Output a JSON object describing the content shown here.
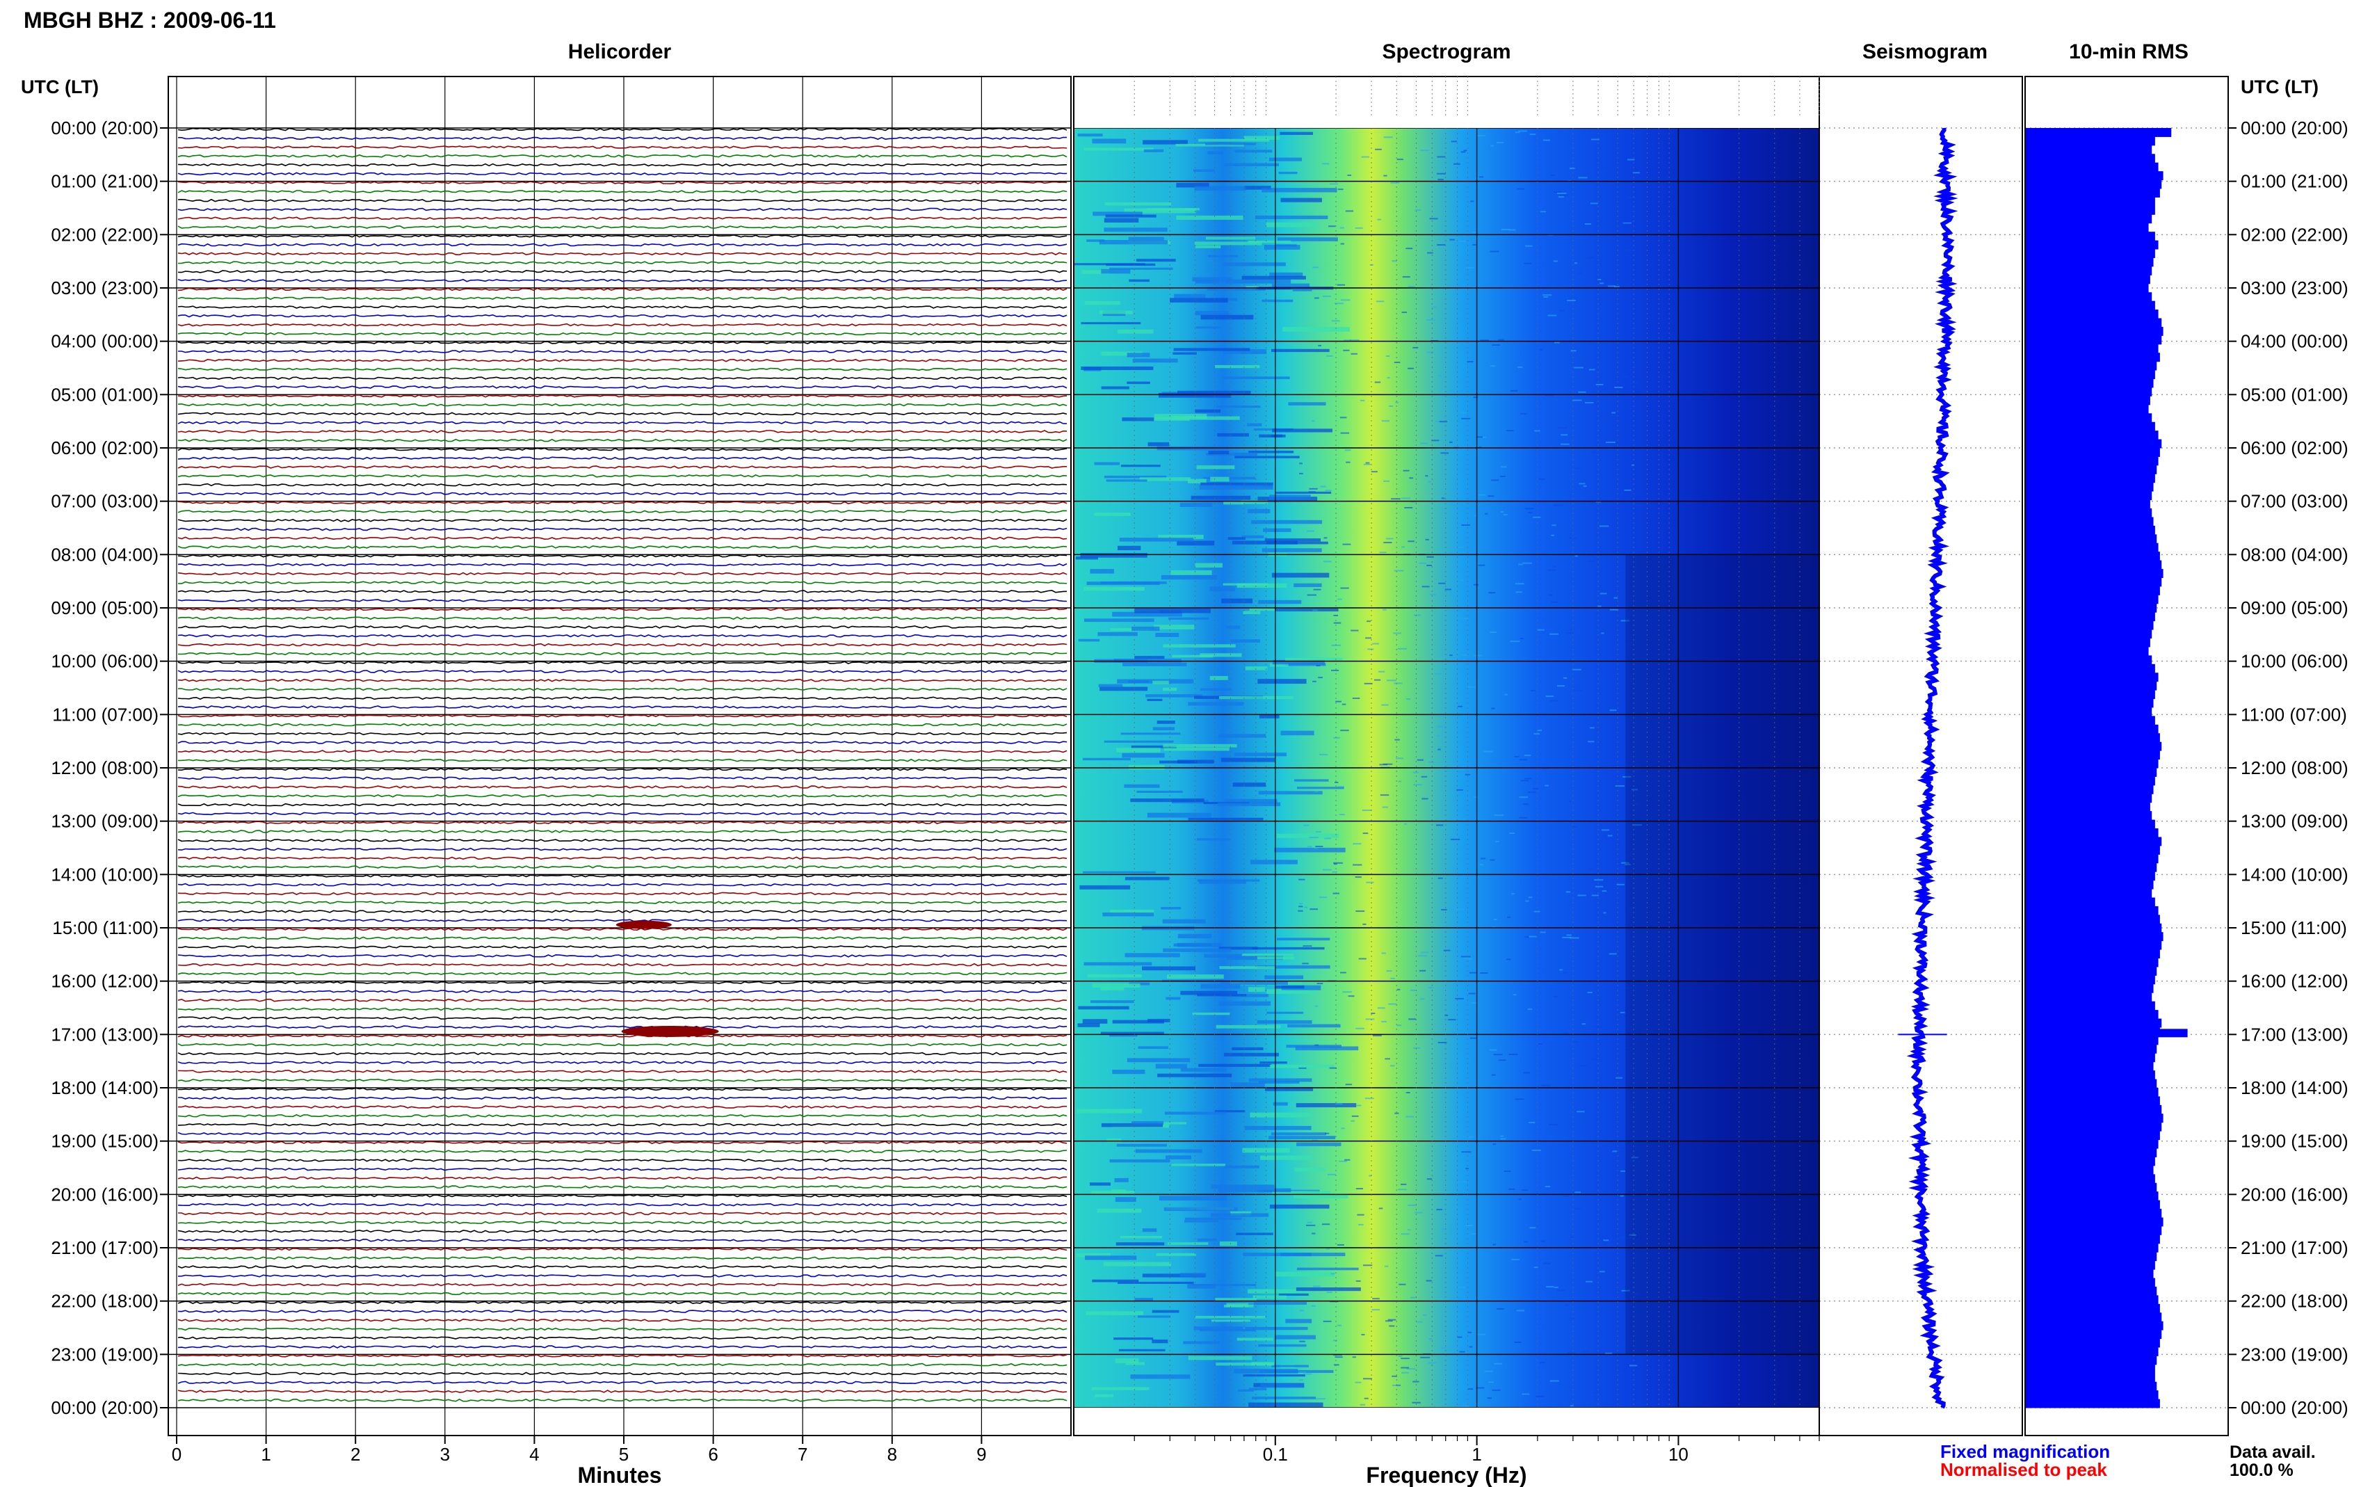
{
  "header": {
    "title": "MBGH BHZ : 2009-06-11"
  },
  "panels": {
    "helicorder": "Helicorder",
    "spectrogram": "Spectrogram",
    "seismogram": "Seismogram",
    "rms": "10-min RMS"
  },
  "axes": {
    "time_header_left": "UTC (LT)",
    "time_header_right": "UTC (LT)",
    "minutes_label": "Minutes",
    "frequency_label": "Frequency (Hz)"
  },
  "legend": {
    "fixed": "Fixed magnification",
    "normalised": "Normalised to peak",
    "fixed_color": "#0000ff",
    "normalised_color": "#ff0000"
  },
  "availability": {
    "label": "Data avail.",
    "value": "100.0 %"
  },
  "chart_data": {
    "type": "heatmap",
    "time_labels": [
      "00:00 (20:00)",
      "01:00 (21:00)",
      "02:00 (22:00)",
      "03:00 (23:00)",
      "04:00 (00:00)",
      "05:00 (01:00)",
      "06:00 (02:00)",
      "07:00 (03:00)",
      "08:00 (04:00)",
      "09:00 (05:00)",
      "10:00 (06:00)",
      "11:00 (07:00)",
      "12:00 (08:00)",
      "13:00 (09:00)",
      "14:00 (10:00)",
      "15:00 (11:00)",
      "16:00 (12:00)",
      "17:00 (13:00)",
      "18:00 (14:00)",
      "19:00 (15:00)",
      "20:00 (16:00)",
      "21:00 (17:00)",
      "22:00 (18:00)",
      "23:00 (19:00)",
      "00:00 (20:00)"
    ],
    "helicorder": {
      "x_ticks": [
        "0",
        "1",
        "2",
        "3",
        "4",
        "5",
        "6",
        "7",
        "8",
        "9"
      ],
      "xlim": [
        0,
        10
      ],
      "rows_per_hour": 6,
      "trace_colors": [
        "#000000",
        "#0000c8",
        "#a00000",
        "#008000"
      ],
      "events": [
        {
          "hour": 15,
          "minute": 5.1,
          "amplitude": 0.5
        },
        {
          "hour": 17,
          "minute": 5.3,
          "amplitude": 1.0
        }
      ]
    },
    "spectrogram": {
      "x_scale": "log",
      "xlim": [
        0.01,
        50
      ],
      "x_ticks": [
        "0.1",
        "1",
        "10"
      ],
      "peak_frequency_hz": 0.35
    },
    "seismogram": {
      "hourly_offset": [
        0.3,
        0.3,
        0.35,
        0.35,
        0.3,
        0.25,
        0.2,
        0.15,
        0.1,
        0.05,
        0.0,
        -0.05,
        -0.1,
        -0.15,
        -0.2,
        -0.25,
        -0.3,
        -0.35,
        -0.35,
        -0.3,
        -0.3,
        -0.25,
        -0.15,
        0.0,
        0.2
      ],
      "color": "#0000ff"
    },
    "rms": {
      "values": [
        0.9,
        0.8,
        0.78,
        0.8,
        0.82,
        0.85,
        0.84,
        0.83,
        0.8,
        0.8,
        0.78,
        0.76,
        0.8,
        0.82,
        0.8,
        0.79,
        0.78,
        0.77,
        0.76,
        0.78,
        0.8,
        0.82,
        0.84,
        0.85,
        0.84,
        0.82,
        0.83,
        0.81,
        0.8,
        0.79,
        0.78,
        0.77,
        0.76,
        0.78,
        0.8,
        0.82,
        0.84,
        0.83,
        0.82,
        0.81,
        0.8,
        0.79,
        0.78,
        0.77,
        0.78,
        0.79,
        0.8,
        0.81,
        0.82,
        0.83,
        0.84,
        0.85,
        0.84,
        0.83,
        0.82,
        0.81,
        0.8,
        0.79,
        0.78,
        0.77,
        0.76,
        0.78,
        0.8,
        0.82,
        0.81,
        0.8,
        0.79,
        0.78,
        0.8,
        0.82,
        0.83,
        0.84,
        0.83,
        0.82,
        0.81,
        0.8,
        0.79,
        0.78,
        0.77,
        0.78,
        0.8,
        0.82,
        0.84,
        0.83,
        0.82,
        0.81,
        0.8,
        0.79,
        0.78,
        0.8,
        0.82,
        0.83,
        0.84,
        0.85,
        0.84,
        0.83,
        0.82,
        0.81,
        0.8,
        0.79,
        0.78,
        0.8,
        0.82,
        0.84,
        0.83,
        0.82,
        0.81,
        0.8,
        0.79,
        0.8,
        0.81,
        0.82,
        0.83,
        0.84,
        0.85,
        0.84,
        0.83,
        0.82,
        0.81,
        0.8,
        0.79,
        0.8,
        0.81,
        0.82,
        0.83,
        0.84,
        0.85,
        0.84,
        0.83,
        0.82,
        0.81,
        0.8,
        0.79,
        0.8,
        0.81,
        0.82,
        0.83,
        0.84,
        0.85,
        0.84,
        0.83,
        0.82,
        0.81,
        0.8,
        0.8,
        0.81,
        0.82,
        0.83
      ],
      "color": "#0000ff"
    }
  }
}
